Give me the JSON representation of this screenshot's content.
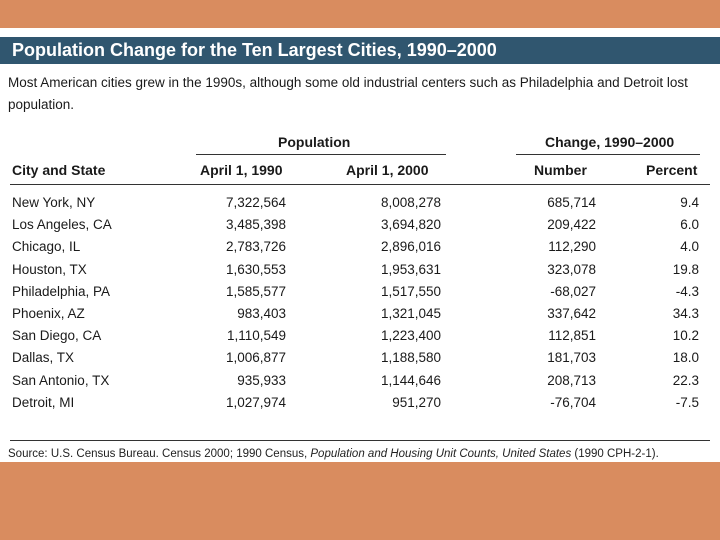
{
  "title": "Population Change for the Ten Largest Cities, 1990–2000",
  "intro": "Most American cities grew in the 1990s, although some old industrial centers such as Philadelphia and Detroit lost population.",
  "group_headers": {
    "population": "Population",
    "change": "Change, 1990–2000"
  },
  "columns": [
    "City and State",
    "April 1, 1990",
    "April 1, 2000",
    "Number",
    "Percent"
  ],
  "rows": [
    {
      "city": "New York, NY",
      "pop1990": "7,322,564",
      "pop2000": "8,008,278",
      "number": "685,714",
      "percent": "9.4"
    },
    {
      "city": "Los Angeles, CA",
      "pop1990": "3,485,398",
      "pop2000": "3,694,820",
      "number": "209,422",
      "percent": "6.0"
    },
    {
      "city": "Chicago, IL",
      "pop1990": "2,783,726",
      "pop2000": "2,896,016",
      "number": "112,290",
      "percent": "4.0"
    },
    {
      "city": "Houston, TX",
      "pop1990": "1,630,553",
      "pop2000": "1,953,631",
      "number": "323,078",
      "percent": "19.8"
    },
    {
      "city": "Philadelphia, PA",
      "pop1990": "1,585,577",
      "pop2000": "1,517,550",
      "number": "-68,027",
      "percent": "-4.3"
    },
    {
      "city": "Phoenix, AZ",
      "pop1990": "983,403",
      "pop2000": "1,321,045",
      "number": "337,642",
      "percent": "34.3"
    },
    {
      "city": "San Diego, CA",
      "pop1990": "1,110,549",
      "pop2000": "1,223,400",
      "number": "112,851",
      "percent": "10.2"
    },
    {
      "city": "Dallas, TX",
      "pop1990": "1,006,877",
      "pop2000": "1,188,580",
      "number": "181,703",
      "percent": "18.0"
    },
    {
      "city": "San Antonio, TX",
      "pop1990": "935,933",
      "pop2000": "1,144,646",
      "number": "208,713",
      "percent": "22.3"
    },
    {
      "city": "Detroit, MI",
      "pop1990": "1,027,974",
      "pop2000": "951,270",
      "number": "-76,704",
      "percent": "-7.5"
    }
  ],
  "source": {
    "prefix": "Source: U.S. Census Bureau. Census 2000; 1990 Census, ",
    "italic": "Population and Housing Unit Counts, United States",
    "suffix": " (1990 CPH-2-1)."
  },
  "colors": {
    "background": "#d98c5f",
    "title_bar": "#30566f",
    "title_text": "#ffffff",
    "panel": "#ffffff"
  }
}
